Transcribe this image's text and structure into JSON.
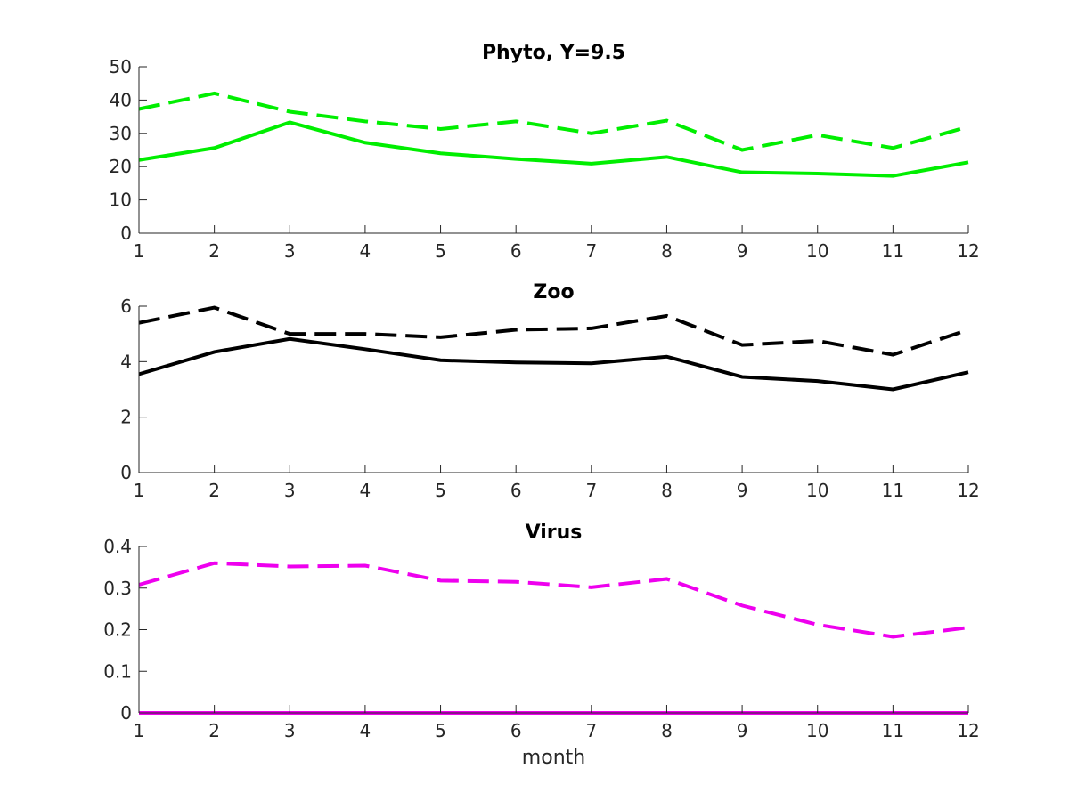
{
  "chart_data": [
    {
      "type": "line",
      "title": "Phyto, Y=9.5",
      "xlabel": "",
      "ylabel": "",
      "xlim": [
        1,
        12
      ],
      "ylim": [
        0,
        50
      ],
      "xticks": [
        1,
        2,
        3,
        4,
        5,
        6,
        7,
        8,
        9,
        10,
        11,
        12
      ],
      "yticks": [
        0,
        10,
        20,
        30,
        40,
        50
      ],
      "x": [
        1,
        2,
        3,
        4,
        5,
        6,
        7,
        8,
        9,
        10,
        11,
        12
      ],
      "series": [
        {
          "name": "solid",
          "style": "solid",
          "color": "#00ee00",
          "values": [
            22.0,
            25.6,
            33.3,
            27.2,
            24.0,
            22.3,
            20.9,
            22.9,
            18.3,
            17.9,
            17.2,
            21.3
          ]
        },
        {
          "name": "dashed",
          "style": "dashed",
          "color": "#00ee00",
          "values": [
            37.3,
            42.0,
            36.5,
            33.6,
            31.3,
            33.6,
            30.0,
            33.8,
            25.0,
            29.5,
            25.6,
            32.0
          ]
        }
      ]
    },
    {
      "type": "line",
      "title": "Zoo",
      "xlabel": "",
      "ylabel": "",
      "xlim": [
        1,
        12
      ],
      "ylim": [
        0,
        6
      ],
      "xticks": [
        1,
        2,
        3,
        4,
        5,
        6,
        7,
        8,
        9,
        10,
        11,
        12
      ],
      "yticks": [
        0,
        2,
        4,
        6
      ],
      "x": [
        1,
        2,
        3,
        4,
        5,
        6,
        7,
        8,
        9,
        10,
        11,
        12
      ],
      "series": [
        {
          "name": "solid",
          "style": "solid",
          "color": "#000000",
          "values": [
            3.55,
            4.35,
            4.82,
            4.45,
            4.05,
            3.97,
            3.94,
            4.18,
            3.45,
            3.3,
            3.0,
            3.62
          ]
        },
        {
          "name": "dashed",
          "style": "dashed",
          "color": "#000000",
          "values": [
            5.4,
            5.95,
            5.0,
            5.0,
            4.88,
            5.15,
            5.2,
            5.65,
            4.6,
            4.75,
            4.25,
            5.15
          ]
        }
      ]
    },
    {
      "type": "line",
      "title": "Virus",
      "xlabel": "month",
      "ylabel": "",
      "xlim": [
        1,
        12
      ],
      "ylim": [
        0,
        0.4
      ],
      "xticks": [
        1,
        2,
        3,
        4,
        5,
        6,
        7,
        8,
        9,
        10,
        11,
        12
      ],
      "yticks": [
        0,
        0.1,
        0.2,
        0.3,
        0.4
      ],
      "x": [
        1,
        2,
        3,
        4,
        5,
        6,
        7,
        8,
        9,
        10,
        11,
        12
      ],
      "series": [
        {
          "name": "solid",
          "style": "solid",
          "color": "#ee00ee",
          "values": [
            0,
            0,
            0,
            0,
            0,
            0,
            0,
            0,
            0,
            0,
            0,
            0
          ]
        },
        {
          "name": "dashed",
          "style": "dashed",
          "color": "#ee00ee",
          "values": [
            0.308,
            0.36,
            0.352,
            0.354,
            0.318,
            0.315,
            0.302,
            0.322,
            0.258,
            0.212,
            0.183,
            0.205
          ]
        }
      ]
    }
  ]
}
